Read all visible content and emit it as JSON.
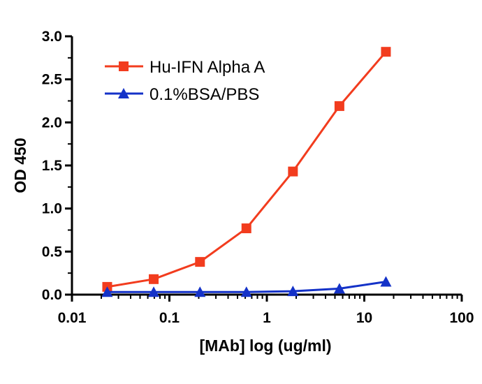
{
  "chart_data": {
    "type": "line",
    "xlabel": "[MAb] log (ug/ml)",
    "ylabel": "OD 450",
    "x_scale": "log",
    "xlim": [
      0.01,
      100
    ],
    "ylim": [
      0,
      3.0
    ],
    "x_ticks": [
      "0.01",
      "0.1",
      "1",
      "10",
      "100"
    ],
    "y_ticks": [
      "0.0",
      "0.5",
      "1.0",
      "1.5",
      "2.0",
      "2.5",
      "3.0"
    ],
    "grid": false,
    "legend_position": "top-left",
    "x": [
      0.023,
      0.069,
      0.206,
      0.617,
      1.852,
      5.556,
      16.667
    ],
    "series": [
      {
        "name": "Hu-IFN Alpha A",
        "color": "#f23c1e",
        "marker": "square",
        "values": [
          0.09,
          0.18,
          0.38,
          0.77,
          1.43,
          2.19,
          2.82
        ]
      },
      {
        "name": "0.1%BSA/PBS",
        "color": "#1432c8",
        "marker": "triangle",
        "values": [
          0.03,
          0.03,
          0.03,
          0.03,
          0.04,
          0.07,
          0.15
        ]
      }
    ]
  }
}
